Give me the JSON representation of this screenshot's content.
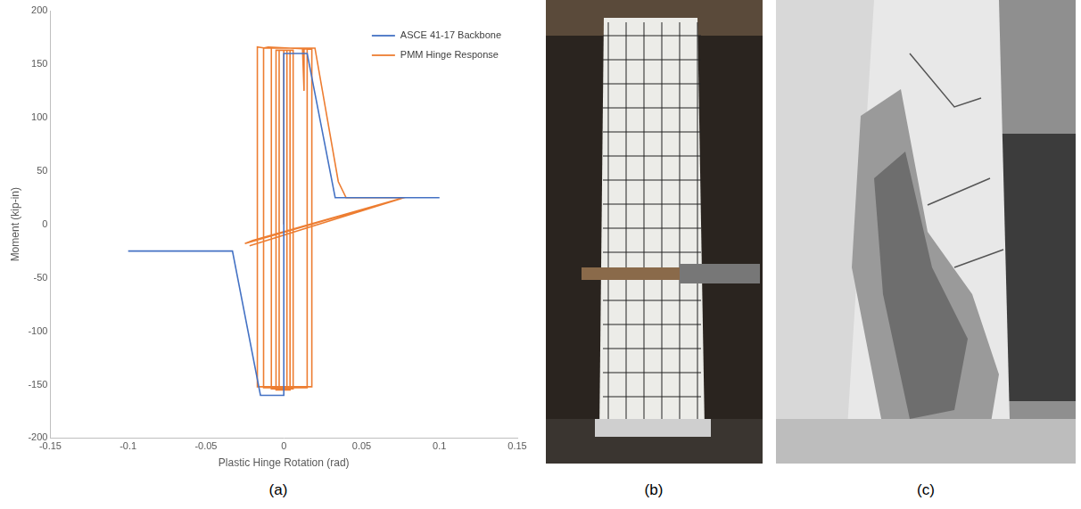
{
  "chart_data": {
    "type": "line",
    "x_label": "Plastic Hinge Rotation (rad)",
    "y_label": "Moment (kip-in)",
    "xlim": [
      -0.15,
      0.15
    ],
    "xticks": [
      -0.15,
      -0.1,
      -0.05,
      0,
      0.05,
      0.1,
      0.15
    ],
    "ylim": [
      -200,
      200
    ],
    "yticks": [
      -200,
      -150,
      -100,
      -50,
      0,
      50,
      100,
      150,
      200
    ],
    "grid": false,
    "legend": "upper right",
    "series": [
      {
        "name": "ASCE 41-17 Backbone",
        "color": "#4472c4",
        "marker": "none",
        "line_style": "solid",
        "x": [
          -0.1,
          -0.033,
          -0.015,
          0,
          0,
          0.015,
          0.033,
          0.1
        ],
        "values": [
          -25,
          -25,
          -160,
          -160,
          160,
          160,
          25,
          25
        ]
      },
      {
        "name": "PMM Hinge Response",
        "color": "#ed7d31",
        "marker": "none",
        "line_style": "solid",
        "x": [
          0,
          0,
          0.002,
          0.002,
          -0.003,
          -0.003,
          0.004,
          0.004,
          -0.005,
          -0.005,
          -0.005,
          0.006,
          0.006,
          -0.008,
          -0.008,
          0.012,
          0.013,
          0.013,
          0.015,
          0.015,
          -0.013,
          -0.013,
          -0.01,
          0.018,
          0.018,
          -0.017,
          -0.017,
          -0.012,
          0.02,
          0.035,
          0.04,
          0.077,
          -0.025,
          -0.02,
          0.077,
          0.075,
          -0.022
        ],
        "values": [
          0,
          163,
          163,
          -155,
          -155,
          163,
          163,
          -155,
          -155,
          80,
          163,
          163,
          -154,
          -154,
          165,
          165,
          125,
          165,
          165,
          -153,
          -153,
          165,
          166,
          164,
          -152,
          -152,
          166,
          165,
          165,
          40,
          25,
          25,
          -18,
          -15,
          25,
          24,
          -20
        ]
      }
    ]
  },
  "panel_labels": [
    "(a)",
    "(b)",
    "(c)"
  ]
}
